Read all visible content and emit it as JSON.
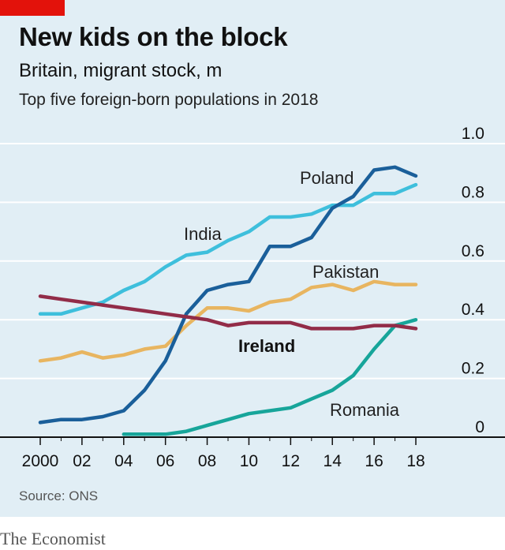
{
  "header": {
    "title": "New kids on the block",
    "subtitle": "Britain, migrant stock, m",
    "note": "Top five foreign-born populations in 2018"
  },
  "footer": {
    "source": "Source: ONS",
    "brand": "The Economist"
  },
  "colors": {
    "background": "#e1eef5",
    "accent_red": "#e3120b",
    "grid": "#ffffff"
  },
  "chart_data": {
    "type": "line",
    "title": "New kids on the block",
    "subtitle": "Britain, migrant stock, m",
    "ylim": [
      0,
      1.0
    ],
    "xlim": [
      2000,
      2018
    ],
    "y_ticks": [
      0,
      0.2,
      0.4,
      0.6,
      0.8,
      1.0
    ],
    "y_tick_labels": [
      "0",
      "0.2",
      "0.4",
      "0.6",
      "0.8",
      "1.0"
    ],
    "x_ticks": [
      2000,
      2002,
      2004,
      2006,
      2008,
      2010,
      2012,
      2014,
      2016,
      2018
    ],
    "x_tick_labels": [
      "2000",
      "02",
      "04",
      "06",
      "08",
      "10",
      "12",
      "14",
      "16",
      "18"
    ],
    "grid": true,
    "legend": "inline labels",
    "series": [
      {
        "name": "India",
        "color": "#3ebfdc",
        "x": [
          2000,
          2001,
          2002,
          2003,
          2004,
          2005,
          2006,
          2007,
          2008,
          2009,
          2010,
          2011,
          2012,
          2013,
          2014,
          2015,
          2016,
          2017,
          2018
        ],
        "values": [
          0.42,
          0.42,
          0.44,
          0.46,
          0.5,
          0.53,
          0.58,
          0.62,
          0.63,
          0.67,
          0.7,
          0.75,
          0.75,
          0.76,
          0.79,
          0.79,
          0.83,
          0.83,
          0.86
        ]
      },
      {
        "name": "Poland",
        "color": "#1a5f9a",
        "x": [
          2000,
          2001,
          2002,
          2003,
          2004,
          2005,
          2006,
          2007,
          2008,
          2009,
          2010,
          2011,
          2012,
          2013,
          2014,
          2015,
          2016,
          2017,
          2018
        ],
        "values": [
          0.05,
          0.06,
          0.06,
          0.07,
          0.09,
          0.16,
          0.26,
          0.42,
          0.5,
          0.52,
          0.53,
          0.65,
          0.65,
          0.68,
          0.78,
          0.82,
          0.91,
          0.92,
          0.89
        ]
      },
      {
        "name": "Pakistan",
        "color": "#e8b560",
        "x": [
          2000,
          2001,
          2002,
          2003,
          2004,
          2005,
          2006,
          2007,
          2008,
          2009,
          2010,
          2011,
          2012,
          2013,
          2014,
          2015,
          2016,
          2017,
          2018
        ],
        "values": [
          0.26,
          0.27,
          0.29,
          0.27,
          0.28,
          0.3,
          0.31,
          0.38,
          0.44,
          0.44,
          0.43,
          0.46,
          0.47,
          0.51,
          0.52,
          0.5,
          0.53,
          0.52,
          0.52
        ]
      },
      {
        "name": "Ireland",
        "color": "#922c48",
        "x": [
          2000,
          2001,
          2002,
          2003,
          2004,
          2005,
          2006,
          2007,
          2008,
          2009,
          2010,
          2011,
          2012,
          2013,
          2014,
          2015,
          2016,
          2017,
          2018
        ],
        "values": [
          0.48,
          0.47,
          0.46,
          0.45,
          0.44,
          0.43,
          0.42,
          0.41,
          0.4,
          0.38,
          0.39,
          0.39,
          0.39,
          0.37,
          0.37,
          0.37,
          0.38,
          0.38,
          0.37
        ]
      },
      {
        "name": "Romania",
        "color": "#17a59a",
        "x": [
          2004,
          2005,
          2006,
          2007,
          2008,
          2009,
          2010,
          2011,
          2012,
          2013,
          2014,
          2015,
          2016,
          2017,
          2018
        ],
        "values": [
          0.01,
          0.01,
          0.01,
          0.02,
          0.04,
          0.06,
          0.08,
          0.09,
          0.1,
          0.13,
          0.16,
          0.21,
          0.3,
          0.38,
          0.4
        ]
      }
    ]
  }
}
